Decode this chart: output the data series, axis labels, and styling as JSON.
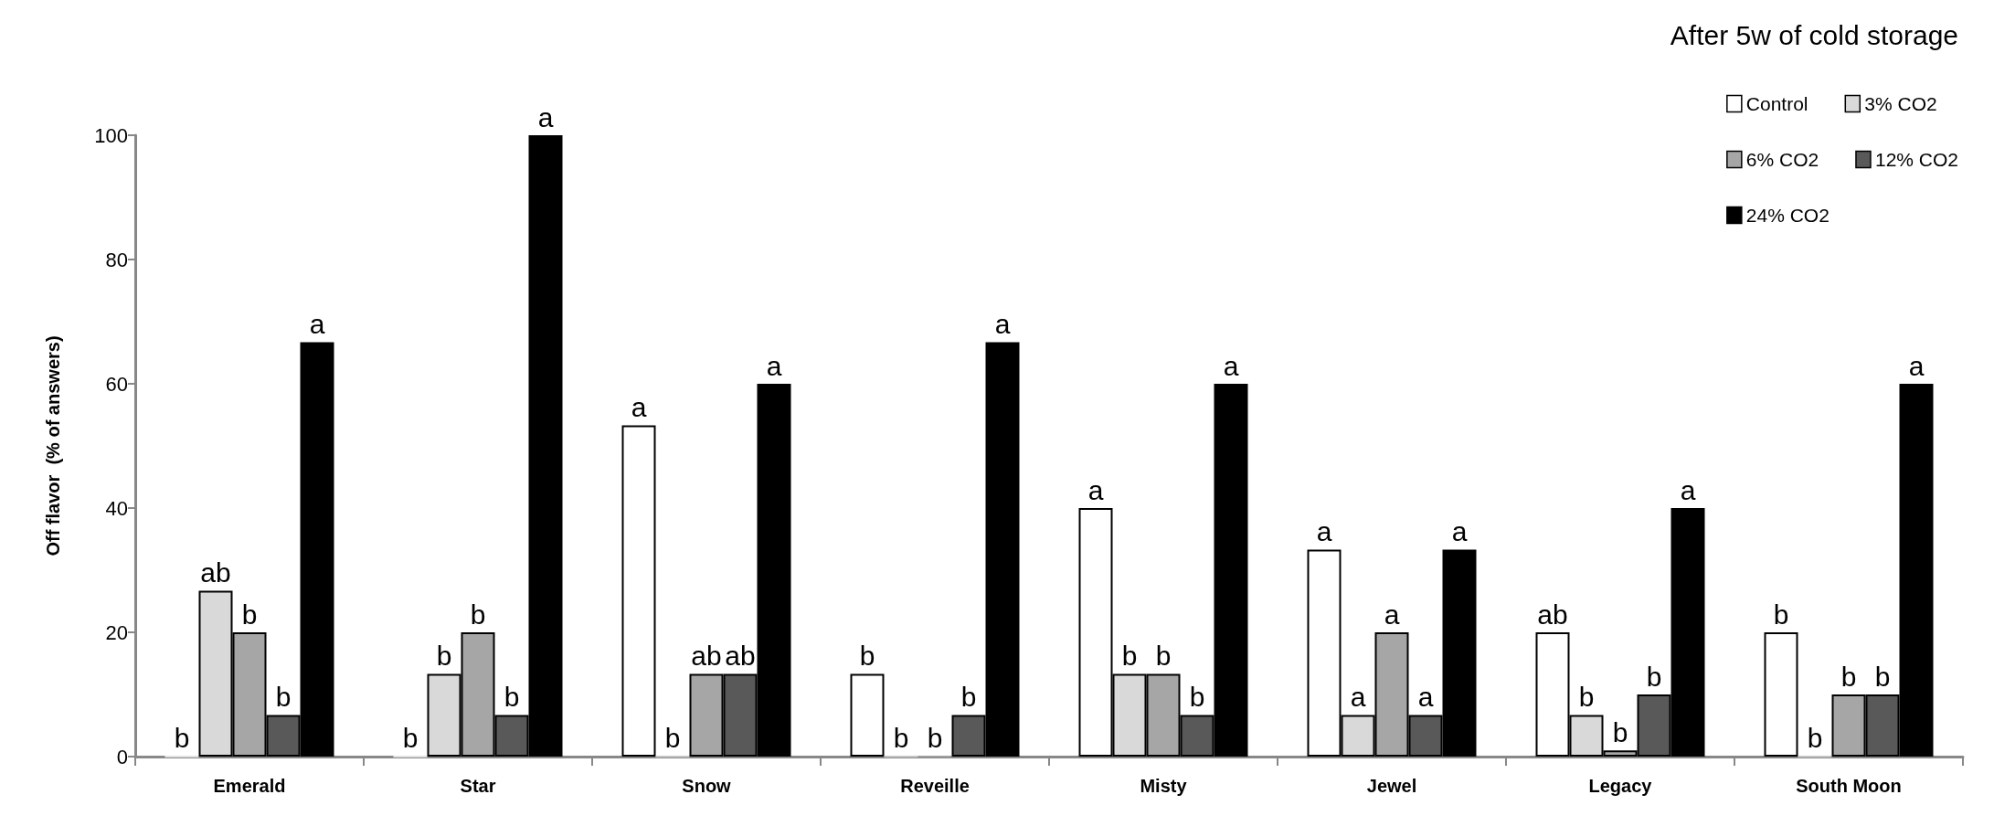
{
  "chart_data": {
    "type": "bar",
    "title": "After 5w of cold storage",
    "ylabel": "Off flavor  (% of answers)",
    "categories": [
      "Emerald",
      "Star",
      "Snow",
      "Reveille",
      "Misty",
      "Jewel",
      "Legacy",
      "South Moon"
    ],
    "series": [
      {
        "name": "Control",
        "color": "#ffffff",
        "values": [
          0,
          0,
          53.3,
          13.3,
          40,
          33.3,
          20,
          20
        ],
        "value_labels": [
          "b",
          "b",
          "a",
          "b",
          "a",
          "a",
          "ab",
          "b"
        ]
      },
      {
        "name": "3% CO2",
        "color": "#d9d9d9",
        "values": [
          26.7,
          13.3,
          0,
          0,
          13.3,
          6.7,
          6.7,
          0
        ],
        "value_labels": [
          "ab",
          "b",
          "b",
          "b",
          "b",
          "a",
          "b",
          "b"
        ]
      },
      {
        "name": "6% CO2",
        "color": "#a6a6a6",
        "values": [
          20,
          20,
          13.3,
          0,
          13.3,
          20,
          1,
          10
        ],
        "value_labels": [
          "b",
          "b",
          "ab",
          "b",
          "b",
          "a",
          "b",
          "b"
        ]
      },
      {
        "name": "12% CO2",
        "color": "#595959",
        "values": [
          6.7,
          6.7,
          13.3,
          6.7,
          6.7,
          6.7,
          10,
          10
        ],
        "value_labels": [
          "b",
          "b",
          "ab",
          "b",
          "b",
          "a",
          "b",
          "b"
        ]
      },
      {
        "name": "24% CO2",
        "color": "#000000",
        "values": [
          66.7,
          100,
          60,
          66.7,
          60,
          33.3,
          40,
          60
        ],
        "value_labels": [
          "a",
          "a",
          "a",
          "a",
          "a",
          "a",
          "a",
          "a"
        ]
      }
    ],
    "ylim": [
      0,
      100
    ],
    "yticks": [
      0,
      20,
      40,
      60,
      80,
      100
    ],
    "legend": "top right"
  }
}
